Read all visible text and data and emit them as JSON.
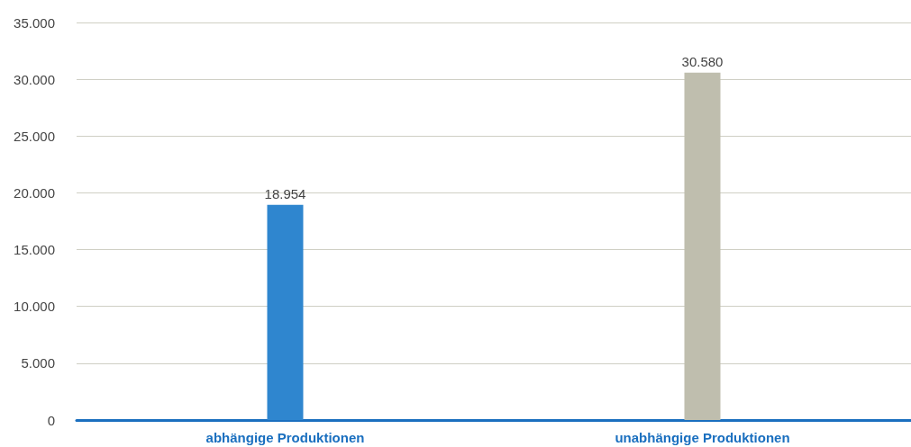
{
  "chart_data": {
    "type": "bar",
    "categories": [
      "abhängige Produktionen",
      "unabhängige Produktionen"
    ],
    "values": [
      18954,
      30580
    ],
    "colors": [
      "#2f86cf",
      "#bfbeae"
    ],
    "value_labels": [
      "18.954",
      "30.580"
    ],
    "ylim": [
      0,
      35000
    ],
    "yticks": [
      {
        "value": 0,
        "label": "0"
      },
      {
        "value": 5000,
        "label": "5.000"
      },
      {
        "value": 10000,
        "label": "10.000"
      },
      {
        "value": 15000,
        "label": "15.000"
      },
      {
        "value": 20000,
        "label": "20.000"
      },
      {
        "value": 25000,
        "label": "25.000"
      },
      {
        "value": 30000,
        "label": "30.000"
      },
      {
        "value": 35000,
        "label": "35.000"
      }
    ],
    "grid": "y"
  }
}
